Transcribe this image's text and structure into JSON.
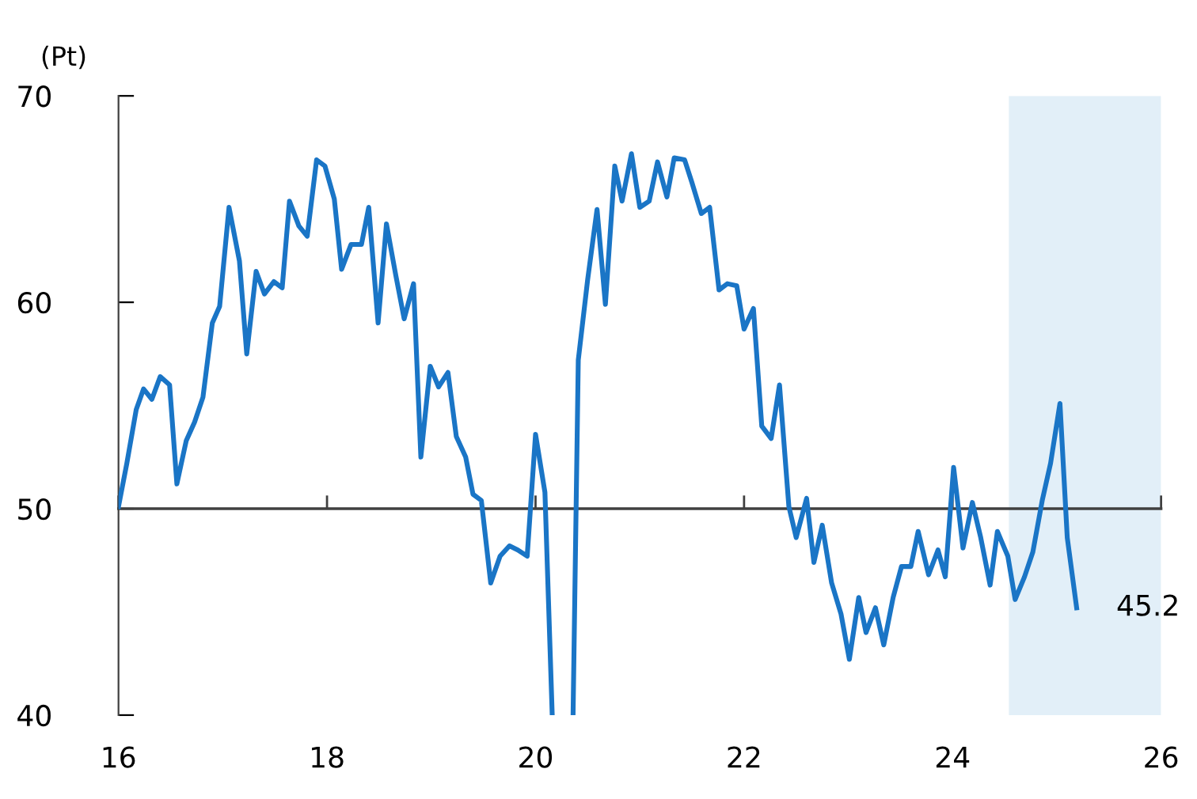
{
  "chart_data": {
    "type": "line",
    "ylabel": "(Pt)",
    "xlim": [
      16,
      26
    ],
    "xticks": [
      16,
      18,
      20,
      22,
      24,
      26
    ],
    "ylim": [
      40,
      70
    ],
    "yticks": [
      40,
      50,
      60,
      70
    ],
    "grid": false,
    "legend": false,
    "marker": "none",
    "line_style": "solid",
    "series": [
      {
        "color": "#1a75c6",
        "x": [
          16.0,
          16.08,
          16.17,
          16.24,
          16.32,
          16.4,
          16.49,
          16.56,
          16.65,
          16.73,
          16.81,
          16.9,
          16.97,
          17.06,
          17.16,
          17.23,
          17.32,
          17.4,
          17.49,
          17.57,
          17.64,
          17.73,
          17.81,
          17.9,
          17.98,
          18.07,
          18.14,
          18.23,
          18.33,
          18.4,
          18.49,
          18.57,
          18.66,
          18.74,
          18.83,
          18.9,
          18.99,
          19.07,
          19.16,
          19.24,
          19.33,
          19.4,
          19.48,
          19.57,
          19.66,
          19.75,
          19.83,
          19.92,
          20.0,
          20.09,
          20.16,
          20.26,
          20.36,
          20.41,
          20.5,
          20.59,
          20.67,
          20.76,
          20.83,
          20.92,
          21.0,
          21.09,
          21.17,
          21.26,
          21.33,
          21.43,
          21.5,
          21.59,
          21.67,
          21.76,
          21.84,
          21.93,
          22.0,
          22.09,
          22.17,
          22.26,
          22.34,
          22.43,
          22.5,
          22.6,
          22.67,
          22.75,
          22.84,
          22.93,
          23.01,
          23.1,
          23.17,
          23.26,
          23.34,
          23.43,
          23.51,
          23.6,
          23.67,
          23.77,
          23.86,
          23.93,
          24.01,
          24.1,
          24.19,
          24.27,
          24.36,
          24.43,
          24.53,
          24.6,
          24.69,
          24.77,
          24.86,
          24.94,
          25.03,
          25.1,
          25.19
        ],
        "values": [
          50.1,
          52.2,
          54.8,
          55.8,
          55.3,
          56.4,
          56.0,
          51.2,
          53.3,
          54.2,
          55.4,
          59.0,
          59.8,
          64.6,
          62.0,
          57.5,
          61.5,
          60.4,
          61.0,
          60.7,
          64.9,
          63.7,
          63.2,
          66.9,
          66.6,
          65.0,
          61.6,
          62.8,
          62.8,
          64.6,
          59.0,
          63.8,
          61.3,
          59.2,
          60.9,
          52.5,
          56.9,
          55.9,
          56.6,
          53.5,
          52.5,
          50.7,
          50.4,
          46.4,
          47.7,
          48.2,
          48.0,
          47.7,
          53.6,
          50.8,
          40,
          null,
          40,
          57.2,
          61.1,
          64.5,
          59.9,
          66.6,
          64.9,
          67.2,
          64.6,
          64.9,
          66.8,
          65.1,
          67.0,
          66.9,
          65.8,
          64.3,
          64.6,
          60.6,
          60.9,
          60.8,
          58.7,
          59.7,
          54.0,
          53.4,
          56.0,
          50.1,
          48.6,
          50.5,
          47.4,
          49.2,
          46.4,
          44.9,
          42.7,
          45.7,
          44.0,
          45.2,
          43.4,
          45.7,
          47.2,
          47.2,
          48.9,
          46.8,
          48.0,
          46.7,
          52.0,
          48.1,
          50.3,
          48.6,
          46.3,
          48.9,
          47.7,
          45.6,
          46.7,
          47.9,
          50.4,
          52.2,
          55.1,
          48.6,
          45.2
        ]
      }
    ],
    "ref_lines": [
      {
        "axis": "y",
        "value": 50,
        "color": "#404040",
        "line_style": "solid"
      }
    ],
    "bands": [
      {
        "axis": "x",
        "from": 24.54,
        "to": 26,
        "color": "#e2eff8"
      }
    ],
    "annotations": [
      {
        "text": "45.2",
        "x": 25.19,
        "y": 45.2
      }
    ]
  }
}
